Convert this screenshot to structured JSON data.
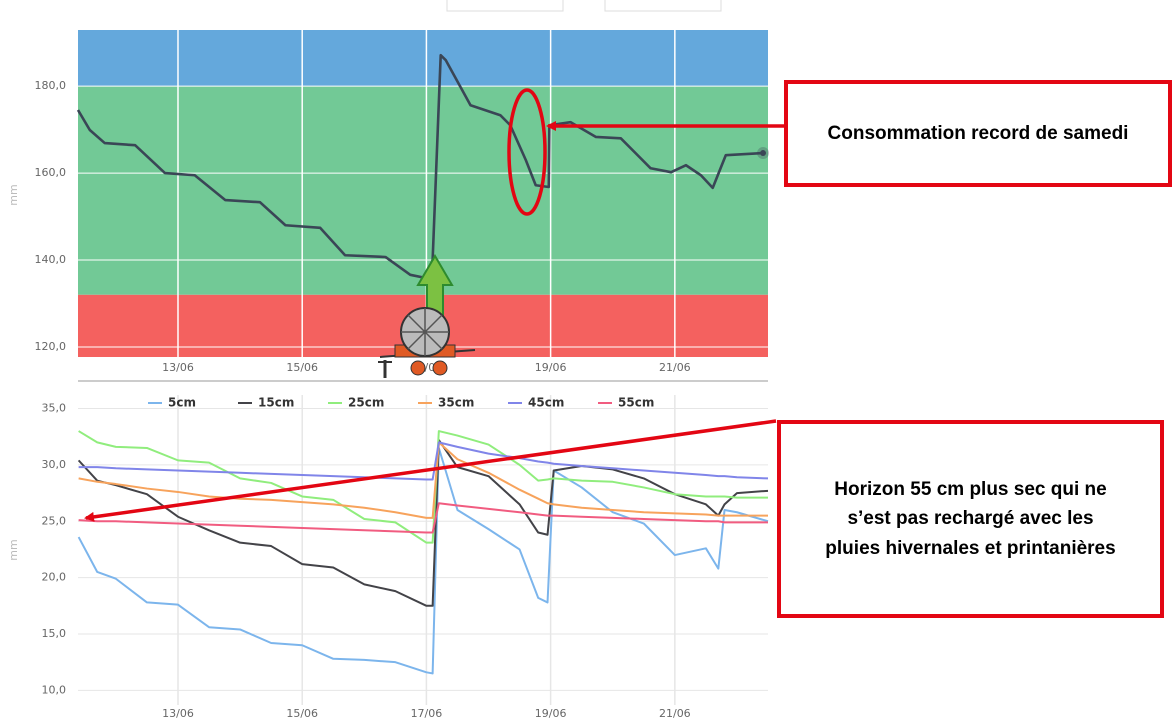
{
  "chart_data": [
    {
      "type": "line",
      "y_label": "mm",
      "annotation": "Consommation record de samedi",
      "xlim": [
        11.39,
        22.5
      ],
      "xticks": [
        {
          "value": 13,
          "label": "13/06"
        },
        {
          "value": 15,
          "label": "15/06"
        },
        {
          "value": 17,
          "label": "17/06"
        },
        {
          "value": 19,
          "label": "19/06"
        },
        {
          "value": 21,
          "label": "21/06"
        }
      ],
      "ylim": [
        117.7,
        192.9
      ],
      "yticks": [
        {
          "value": 120,
          "label": "120,0"
        },
        {
          "value": 140,
          "label": "140,0"
        },
        {
          "value": 160,
          "label": "160,0"
        },
        {
          "value": 180,
          "label": "180,0"
        }
      ],
      "grid": true,
      "grid_color": "#ffffff",
      "bands": [
        {
          "from": 180,
          "to": 192.9,
          "color": "#64a8dc"
        },
        {
          "from": 132,
          "to": 180,
          "color": "#72c996"
        },
        {
          "from": 117.7,
          "to": 132,
          "color": "#f4615f"
        }
      ],
      "color": "#3a4656",
      "x": [
        11.39,
        11.58,
        11.82,
        12.31,
        12.79,
        13.27,
        13.76,
        14.32,
        14.73,
        15.29,
        15.69,
        16.34,
        16.74,
        16.98,
        17.1,
        17.23,
        17.31,
        17.71,
        18.19,
        18.35,
        18.6,
        18.76,
        18.97,
        18.98,
        19.32,
        19.73,
        20.13,
        20.61,
        20.94,
        21.18,
        21.42,
        21.61,
        21.82,
        22.42
      ],
      "values": [
        174.5,
        169.9,
        166.9,
        166.4,
        160,
        159.5,
        153.8,
        153.3,
        148,
        147.4,
        141.1,
        140.7,
        136.6,
        135.9,
        140,
        187.1,
        186,
        175.6,
        173.3,
        171,
        163,
        157.2,
        156.8,
        171,
        171.7,
        168.3,
        168,
        161.1,
        160.2,
        161.8,
        159.5,
        156.6,
        164.1,
        164.6
      ]
    },
    {
      "type": "line",
      "y_label": "mm",
      "annotation": "Horizon 55 cm plus sec qui ne s’est pas rechargé avec les pluies hivernales et printanières",
      "xlim": [
        11.39,
        22.5
      ],
      "xticks": [
        {
          "value": 13,
          "label": "13/06"
        },
        {
          "value": 15,
          "label": "15/06"
        },
        {
          "value": 17,
          "label": "17/06"
        },
        {
          "value": 19,
          "label": "19/06"
        },
        {
          "value": 21,
          "label": "21/06"
        }
      ],
      "ylim": [
        8.7,
        36.2
      ],
      "yticks": [
        {
          "value": 10,
          "label": "10,0"
        },
        {
          "value": 15,
          "label": "15,0"
        },
        {
          "value": 20,
          "label": "20,0"
        },
        {
          "value": 25,
          "label": "25,0"
        },
        {
          "value": 30,
          "label": "30,0"
        },
        {
          "value": 35,
          "label": "35,0"
        }
      ],
      "grid": true,
      "grid_color": "#e6e6e6",
      "x": [
        11.4,
        11.7,
        12.0,
        12.5,
        13.0,
        13.5,
        14.0,
        14.5,
        15.0,
        15.5,
        16.0,
        16.5,
        17.0,
        17.1,
        17.2,
        17.5,
        18.0,
        18.5,
        18.8,
        18.95,
        19.05,
        19.5,
        20.0,
        20.5,
        21.0,
        21.5,
        21.7,
        21.8,
        22.0,
        22.5
      ],
      "series": [
        {
          "name": "5cm",
          "color": "#7cb5ec",
          "values": [
            23.6,
            20.5,
            19.9,
            17.8,
            17.6,
            15.6,
            15.4,
            14.2,
            14.0,
            12.8,
            12.7,
            12.5,
            11.6,
            11.5,
            31.5,
            26.0,
            24.3,
            22.5,
            18.2,
            17.8,
            29.5,
            28.0,
            25.8,
            24.8,
            22.0,
            22.6,
            20.8,
            26.0,
            25.8,
            25.0
          ]
        },
        {
          "name": "15cm",
          "color": "#434348",
          "values": [
            30.4,
            28.6,
            28.2,
            27.4,
            25.4,
            24.2,
            23.1,
            22.8,
            21.2,
            20.9,
            19.4,
            18.8,
            17.5,
            17.5,
            32.2,
            29.8,
            29.0,
            26.5,
            24.0,
            23.8,
            29.5,
            29.9,
            29.6,
            28.8,
            27.4,
            26.5,
            25.5,
            26.5,
            27.5,
            27.7
          ]
        },
        {
          "name": "25cm",
          "color": "#90ed7d",
          "values": [
            33.0,
            32.0,
            31.6,
            31.5,
            30.4,
            30.2,
            28.8,
            28.4,
            27.2,
            26.9,
            25.2,
            24.9,
            23.1,
            23.1,
            33.0,
            32.6,
            31.8,
            30.0,
            28.6,
            28.7,
            28.8,
            28.6,
            28.5,
            28.0,
            27.4,
            27.2,
            27.2,
            27.2,
            27.1,
            27.1
          ]
        },
        {
          "name": "35cm",
          "color": "#f7a35c",
          "values": [
            28.8,
            28.5,
            28.3,
            27.9,
            27.6,
            27.2,
            27.0,
            26.9,
            26.7,
            26.5,
            26.2,
            25.8,
            25.3,
            25.3,
            32.0,
            30.5,
            29.3,
            27.8,
            27.0,
            26.6,
            26.5,
            26.2,
            26.0,
            25.8,
            25.7,
            25.6,
            25.5,
            25.5,
            25.5,
            25.5
          ]
        },
        {
          "name": "45cm",
          "color": "#8085e9",
          "values": [
            29.8,
            29.8,
            29.7,
            29.6,
            29.5,
            29.4,
            29.3,
            29.2,
            29.1,
            29.0,
            28.9,
            28.8,
            28.7,
            28.7,
            32.0,
            31.6,
            31.0,
            30.6,
            30.3,
            30.2,
            30.1,
            29.9,
            29.7,
            29.5,
            29.3,
            29.1,
            29.0,
            29.0,
            28.9,
            28.8
          ]
        },
        {
          "name": "55cm",
          "color": "#f15c80",
          "values": [
            25.1,
            25.0,
            25.0,
            24.9,
            24.8,
            24.7,
            24.6,
            24.5,
            24.4,
            24.3,
            24.2,
            24.1,
            24.0,
            24.0,
            26.6,
            26.4,
            26.1,
            25.8,
            25.6,
            25.5,
            25.5,
            25.4,
            25.3,
            25.2,
            25.1,
            25.0,
            25.0,
            24.9,
            24.9,
            24.9
          ]
        }
      ]
    }
  ]
}
